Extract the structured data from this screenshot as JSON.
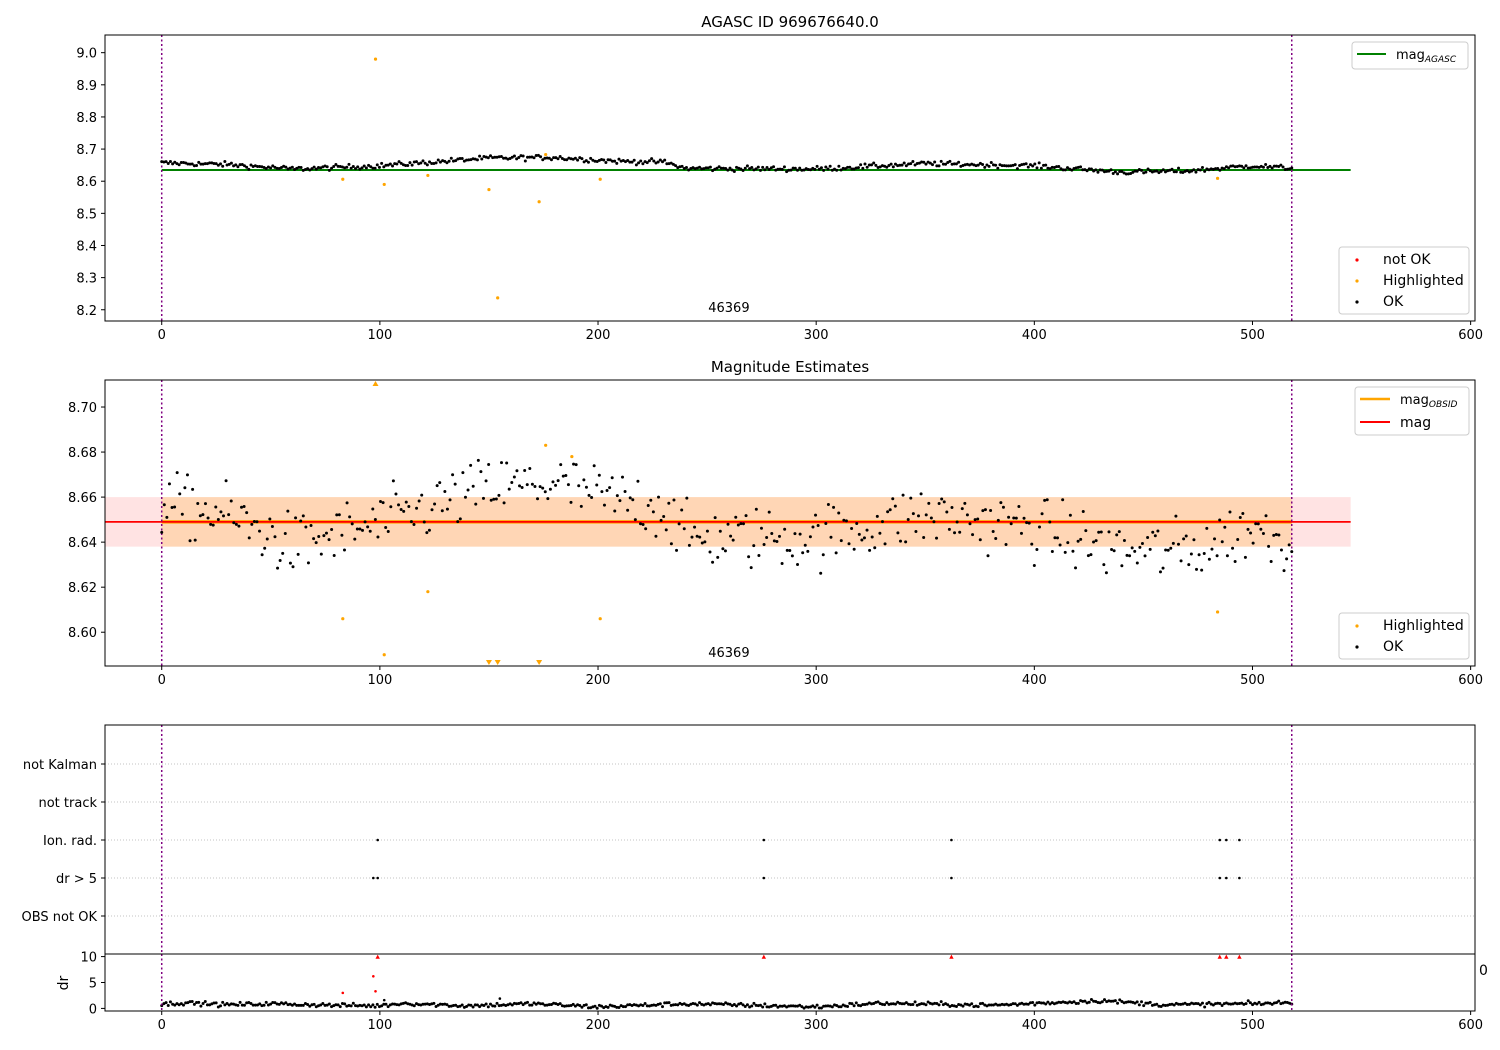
{
  "chart_data": [
    {
      "panel": "agasc",
      "type": "scatter",
      "title": "AGASC ID 969676640.0",
      "xlim": [
        -26,
        602
      ],
      "ylim": [
        8.165,
        9.055
      ],
      "xticks": [
        0,
        100,
        200,
        300,
        400,
        500,
        600
      ],
      "yticks": [
        8.2,
        8.3,
        8.4,
        8.5,
        8.6,
        8.7,
        8.8,
        8.9,
        9.0
      ],
      "ytick_labels": [
        "8.2",
        "8.3",
        "8.4",
        "8.5",
        "8.6",
        "8.7",
        "8.8",
        "8.9",
        "9.0"
      ],
      "vlines": [
        0,
        518
      ],
      "obsid_label": {
        "text": "46369",
        "x": 260
      },
      "mag_agasc_line": {
        "value": 8.635,
        "x": [
          0,
          545
        ],
        "color": "#008000"
      },
      "ok_series": {
        "name": "OK",
        "color": "#000000",
        "n": 520,
        "x_range": [
          0,
          518
        ],
        "level_knots": [
          [
            0,
            8.657
          ],
          [
            30,
            8.652
          ],
          [
            60,
            8.638
          ],
          [
            100,
            8.648
          ],
          [
            150,
            8.672
          ],
          [
            180,
            8.674
          ],
          [
            210,
            8.662
          ],
          [
            230,
            8.66
          ],
          [
            240,
            8.64
          ],
          [
            300,
            8.638
          ],
          [
            350,
            8.655
          ],
          [
            400,
            8.648
          ],
          [
            440,
            8.628
          ],
          [
            470,
            8.632
          ],
          [
            500,
            8.648
          ],
          [
            518,
            8.64
          ]
        ],
        "noise": 0.004
      },
      "highlighted": {
        "name": "Highlighted",
        "color": "#ffa500",
        "x": [
          83,
          98,
          102,
          122,
          150,
          154,
          173,
          176,
          201,
          484
        ],
        "y": [
          8.606,
          8.98,
          8.59,
          8.618,
          8.574,
          8.237,
          8.536,
          8.683,
          8.606,
          8.609
        ]
      },
      "not_ok": {
        "name": "not OK",
        "color": "#ff0000"
      },
      "legend_top": {
        "label_base": "mag",
        "label_sub": "AGASC"
      },
      "legend_bottom": [
        "not OK",
        "Highlighted",
        "OK"
      ]
    },
    {
      "panel": "estimates",
      "type": "scatter",
      "title": "Magnitude Estimates",
      "xlim": [
        -26,
        602
      ],
      "ylim": [
        8.585,
        8.712
      ],
      "xticks": [
        0,
        100,
        200,
        300,
        400,
        500,
        600
      ],
      "yticks": [
        8.6,
        8.62,
        8.64,
        8.66,
        8.68,
        8.7
      ],
      "ytick_labels": [
        "8.60",
        "8.62",
        "8.64",
        "8.66",
        "8.68",
        "8.70"
      ],
      "vlines": [
        0,
        518
      ],
      "obsid_label": {
        "text": "46369",
        "x": 260
      },
      "mag": {
        "name": "mag",
        "value": 8.649,
        "color": "#ff0000",
        "band": [
          8.638,
          8.66
        ],
        "x": [
          -26,
          545
        ]
      },
      "mag_obsid": {
        "label_base": "mag",
        "label_sub": "OBSID",
        "value": 8.649,
        "color": "#ffa500",
        "band": [
          8.638,
          8.66
        ],
        "x": [
          0,
          518
        ]
      },
      "ok_series": {
        "name": "OK",
        "color": "#000000",
        "n": 440,
        "x_range": [
          0,
          518
        ],
        "level_knots": [
          [
            0,
            8.657
          ],
          [
            30,
            8.652
          ],
          [
            60,
            8.638
          ],
          [
            100,
            8.648
          ],
          [
            150,
            8.664
          ],
          [
            180,
            8.666
          ],
          [
            210,
            8.658
          ],
          [
            230,
            8.656
          ],
          [
            240,
            8.642
          ],
          [
            300,
            8.642
          ],
          [
            350,
            8.652
          ],
          [
            400,
            8.646
          ],
          [
            440,
            8.636
          ],
          [
            470,
            8.636
          ],
          [
            500,
            8.646
          ],
          [
            518,
            8.64
          ]
        ],
        "noise": 0.007
      },
      "highlighted": {
        "name": "Highlighted",
        "color": "#ffa500",
        "x": [
          83,
          102,
          122,
          176,
          188,
          201,
          484
        ],
        "y": [
          8.606,
          8.59,
          8.618,
          8.683,
          8.678,
          8.606,
          8.609
        ]
      },
      "out_of_range": {
        "up_x": [
          98
        ],
        "down_x": [
          150,
          154,
          173
        ]
      },
      "legend_top": [
        "mag_OBSID",
        "mag"
      ],
      "legend_bottom": [
        "Highlighted",
        "OK"
      ]
    },
    {
      "panel": "flags",
      "type": "scatter",
      "xlim": [
        -26,
        602
      ],
      "categories": [
        "OBS not OK",
        "dr > 5",
        "Ion. rad.",
        "not track",
        "not Kalman"
      ],
      "vlines": [
        0,
        518
      ],
      "points": [
        {
          "flag": "Ion. rad.",
          "x": [
            99,
            276,
            362,
            485,
            488,
            494
          ]
        },
        {
          "flag": "dr > 5",
          "x": [
            97,
            99,
            276,
            362,
            485,
            488,
            494
          ]
        }
      ]
    },
    {
      "panel": "dr",
      "type": "scatter",
      "ylabel": "dr",
      "xlim": [
        -26,
        602
      ],
      "ylim": [
        -0.5,
        10.5
      ],
      "xticks": [
        0,
        100,
        200,
        300,
        400,
        500,
        600
      ],
      "yticks": [
        0,
        5,
        10
      ],
      "ytick_labels": [
        "0",
        "5",
        "10"
      ],
      "vlines": [
        0,
        518
      ],
      "ok_series": {
        "color": "#000000",
        "n": 520,
        "x_range": [
          0,
          518
        ],
        "level_knots": [
          [
            0,
            0.8
          ],
          [
            10,
            1.1
          ],
          [
            30,
            0.7
          ],
          [
            50,
            0.9
          ],
          [
            80,
            0.6
          ],
          [
            100,
            0.5
          ],
          [
            110,
            1.0
          ],
          [
            140,
            0.5
          ],
          [
            170,
            0.9
          ],
          [
            200,
            0.3
          ],
          [
            240,
            0.9
          ],
          [
            280,
            0.5
          ],
          [
            300,
            0.3
          ],
          [
            330,
            1.0
          ],
          [
            380,
            0.6
          ],
          [
            430,
            1.5
          ],
          [
            460,
            0.7
          ],
          [
            500,
            0.9
          ],
          [
            518,
            1.1
          ]
        ],
        "noise": 0.2
      },
      "red_points": {
        "color": "#ff0000",
        "x": [
          83,
          97,
          98
        ],
        "y": [
          3.0,
          6.2,
          3.3
        ]
      },
      "capped": {
        "color": "#ff0000",
        "x": [
          99,
          276,
          362,
          485,
          488,
          494
        ]
      },
      "extra_points": {
        "x": [
          155,
          102
        ],
        "y": [
          1.9,
          1.6
        ]
      },
      "edge_label": "0"
    }
  ]
}
